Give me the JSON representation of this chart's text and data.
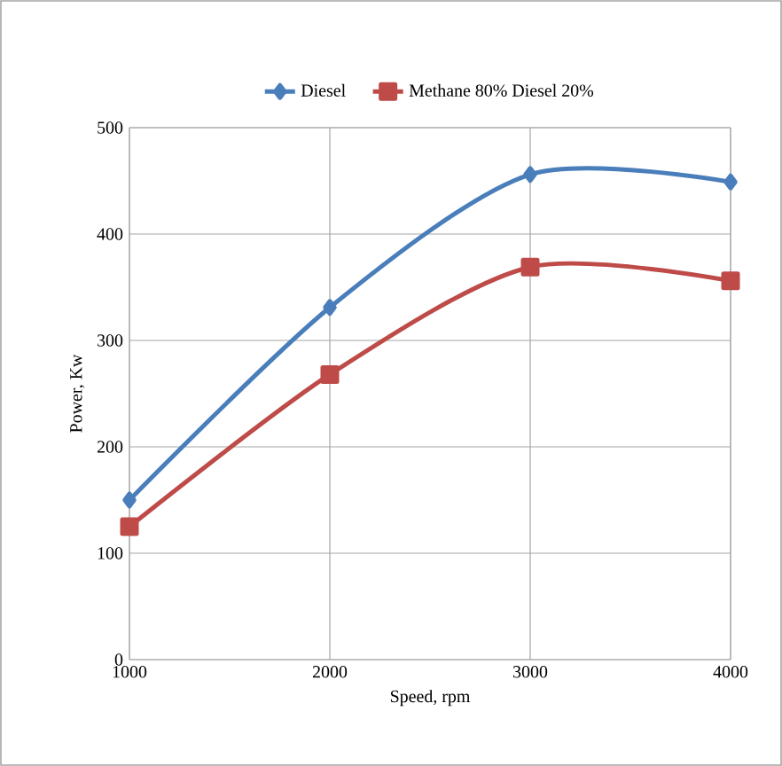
{
  "chart_data": {
    "type": "line",
    "xlabel": "Speed, rpm",
    "ylabel": "Power, Kw",
    "x": [
      1000,
      2000,
      3000,
      4000
    ],
    "series": [
      {
        "name": "Diesel",
        "color": "#4a7ebb",
        "values": [
          150,
          331,
          456,
          449
        ],
        "marker": "diamond"
      },
      {
        "name": "Methane 80% Diesel 20%",
        "color": "#be4b48",
        "values": [
          125,
          268,
          369,
          356
        ],
        "marker": "square"
      }
    ],
    "xlim": [
      1000,
      4000
    ],
    "ylim": [
      0,
      500
    ],
    "xticks": [
      1000,
      2000,
      3000,
      4000
    ],
    "yticks": [
      0,
      100,
      200,
      300,
      400,
      500
    ],
    "grid": true,
    "legend": "top",
    "line_style": "solid"
  }
}
